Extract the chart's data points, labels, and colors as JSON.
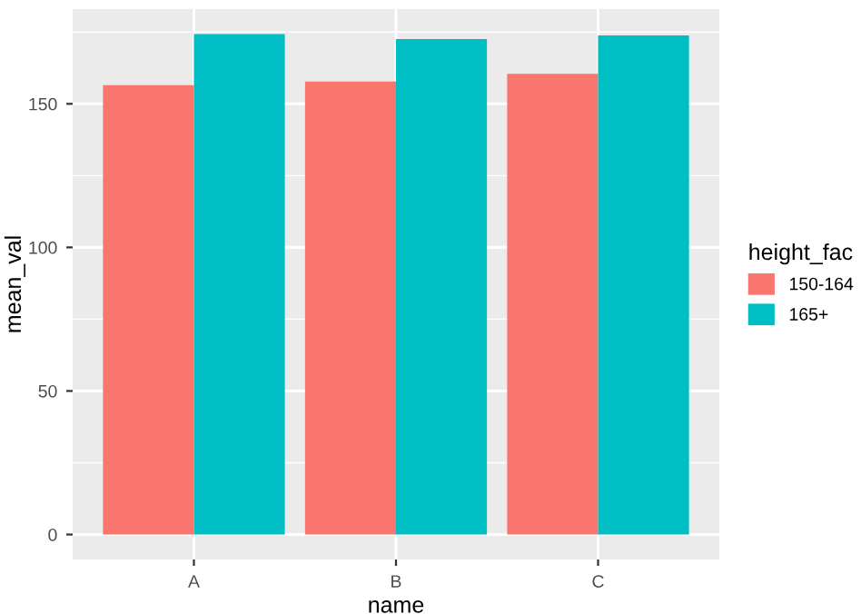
{
  "chart_data": {
    "type": "bar",
    "xlabel": "name",
    "ylabel": "mean_val",
    "legend_title": "height_fac",
    "categories": [
      "A",
      "B",
      "C"
    ],
    "series": [
      {
        "name": "150-164",
        "color": "#f8766d",
        "values": [
          156.5,
          157.8,
          160.5
        ]
      },
      {
        "name": "165+",
        "color": "#00bfc4",
        "values": [
          174.3,
          172.6,
          173.8
        ]
      }
    ],
    "ylim": [
      -8.7,
      183
    ],
    "yticks": [
      0,
      50,
      100,
      150
    ],
    "grid": true,
    "legend": "right"
  }
}
